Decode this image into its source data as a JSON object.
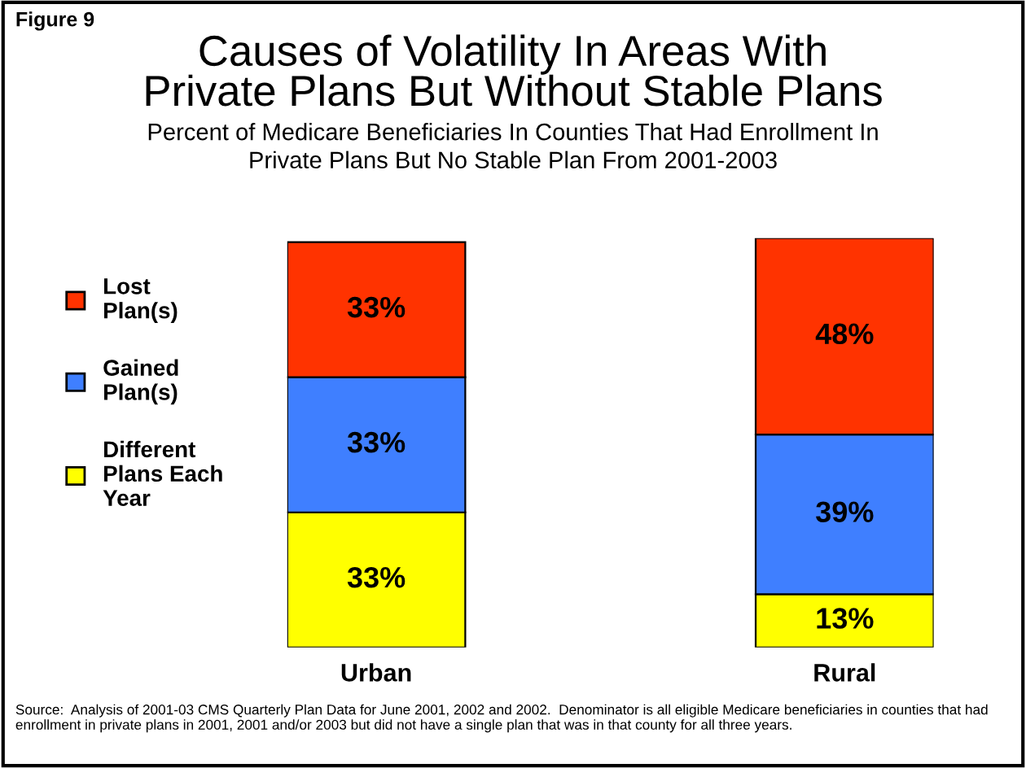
{
  "chart_data": {
    "type": "bar",
    "stacked": true,
    "title": "Causes of Volatility In Areas With\nPrivate Plans But Without Stable Plans",
    "subtitle": "Percent of Medicare Beneficiaries In Counties That Had Enrollment In\nPrivate Plans But No Stable Plan From 2001-2003",
    "categories": [
      "Urban",
      "Rural"
    ],
    "series": [
      {
        "name": "Different\nPlans Each\nYear",
        "color": "#ffff00",
        "values": [
          33,
          13
        ],
        "value_labels": [
          "33%",
          "13%"
        ]
      },
      {
        "name": "Gained\nPlan(s)",
        "color": "#3f7fff",
        "values": [
          33,
          39
        ],
        "value_labels": [
          "33%",
          "39%"
        ]
      },
      {
        "name": "Lost\nPlan(s)",
        "color": "#ff3300",
        "values": [
          33,
          48
        ],
        "value_labels": [
          "33%",
          "48%"
        ]
      }
    ],
    "legend": "left",
    "annotations": [
      "Figure 9",
      "Source:  Analysis of 2001-03 CMS Quarterly Plan Data for June 2001, 2002 and 2002.  Denominator is all eligible Medicare beneficiaries in counties that had enrollment in private plans in 2001, 2001 and/or 2003 but did not have a single plan that was in that county for all three years."
    ]
  }
}
